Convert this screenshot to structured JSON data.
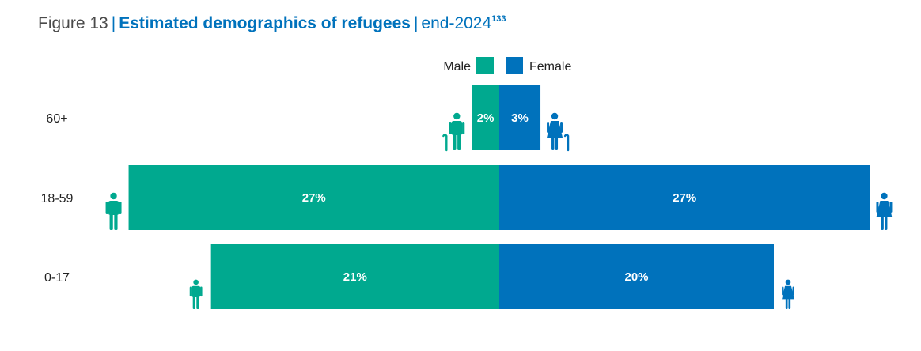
{
  "title": {
    "prefix": "Figure 13",
    "main": "Estimated demographics of refugees",
    "suffix": "end-2024",
    "footnote": "133"
  },
  "chart_data": {
    "type": "bar",
    "orientation": "horizontal-diverging",
    "categories": [
      "60+",
      "18-59",
      "0-17"
    ],
    "series": [
      {
        "name": "Male",
        "color": "#00a98f",
        "values": [
          2,
          27,
          21
        ],
        "labels": [
          "2%",
          "27%",
          "21%"
        ]
      },
      {
        "name": "Female",
        "color": "#0072bc",
        "values": [
          3,
          27,
          20
        ],
        "labels": [
          "3%",
          "27%",
          "20%"
        ]
      }
    ],
    "unit": "%",
    "legend_position": "top-center",
    "icons": {
      "60+": [
        "elderly-man-icon",
        "elderly-woman-icon"
      ],
      "18-59": [
        "man-icon",
        "woman-icon"
      ],
      "0-17": [
        "boy-icon",
        "girl-icon"
      ]
    }
  }
}
